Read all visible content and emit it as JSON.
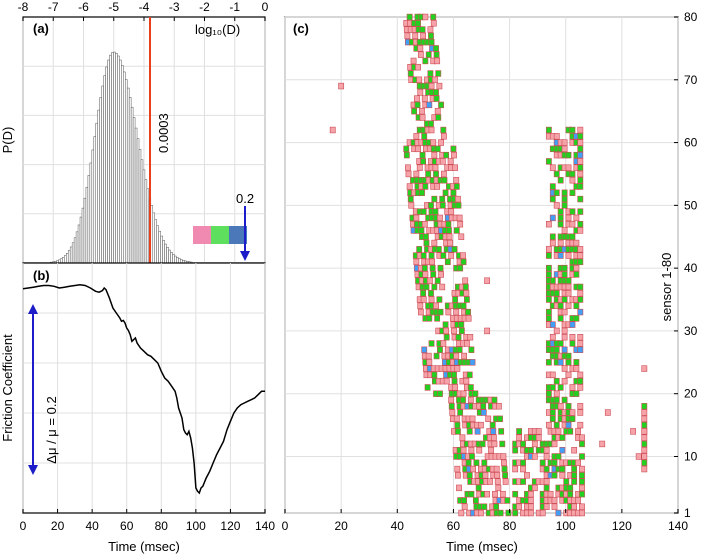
{
  "chart_data": [
    {
      "panel": "(a)",
      "type": "bar",
      "xlabel": "log₁₀(D)",
      "ylabel": "P(D)",
      "xlim": [
        -8,
        0
      ],
      "x_ticks": [
        "-8",
        "-7",
        "-6",
        "-5",
        "-4",
        "-3",
        "-2",
        "-1",
        "0"
      ],
      "grid": true,
      "histogram": {
        "x_start": -8.0,
        "bin_width": 0.065,
        "peak_x": -5.0,
        "peak_relative_height": 1.0,
        "relative_heights_description": "single peaked distribution"
      },
      "threshold_line": {
        "x": -3.52,
        "label": "0.0003",
        "color": "#e8401c"
      },
      "annotation_arrow": {
        "label": "0.2",
        "color": "#1c1cc8"
      },
      "color_legend": [
        "#f08ab0",
        "#5ee05e",
        "#4a78b8"
      ]
    },
    {
      "panel": "(b)",
      "type": "line",
      "xlabel": "Time (msec)",
      "ylabel": "Friction Coefficient",
      "xlim": [
        0,
        140
      ],
      "x_ticks": [
        "0",
        "20",
        "40",
        "60",
        "80",
        "100",
        "120",
        "140"
      ],
      "scale_annotation": "Δμ / μ = 0.2",
      "grid": true,
      "series": [
        {
          "x": [
            0,
            3,
            6,
            9,
            12,
            15,
            18,
            21,
            24,
            27,
            30,
            33,
            36,
            39,
            42,
            44,
            46,
            47,
            48,
            50,
            52,
            54,
            56,
            57,
            58,
            59,
            60,
            61,
            62,
            63,
            64,
            65,
            66,
            68,
            70,
            72,
            74,
            76,
            78,
            80,
            82,
            84,
            86,
            88,
            89,
            90,
            91,
            92,
            93,
            94,
            95,
            96,
            97,
            98,
            99,
            100,
            101,
            102,
            103,
            104,
            106,
            108,
            110,
            112,
            114,
            116,
            118,
            120,
            122,
            124,
            126,
            128,
            130,
            132,
            134,
            136,
            138,
            140
          ],
          "y": [
            0.895,
            0.9,
            0.905,
            0.91,
            0.915,
            0.915,
            0.91,
            0.9,
            0.905,
            0.91,
            0.915,
            0.92,
            0.915,
            0.9,
            0.88,
            0.875,
            0.885,
            0.9,
            0.89,
            0.84,
            0.78,
            0.75,
            0.72,
            0.7,
            0.705,
            0.69,
            0.66,
            0.645,
            0.62,
            0.58,
            0.59,
            0.6,
            0.57,
            0.54,
            0.52,
            0.5,
            0.49,
            0.47,
            0.45,
            0.4,
            0.36,
            0.34,
            0.31,
            0.28,
            0.24,
            0.18,
            0.15,
            0.12,
            0.05,
            0.03,
            0.02,
            0.04,
            0.0,
            -0.06,
            -0.15,
            -0.3,
            -0.32,
            -0.33,
            -0.3,
            -0.29,
            -0.24,
            -0.2,
            -0.15,
            -0.1,
            -0.06,
            -0.02,
            0.05,
            0.1,
            0.15,
            0.18,
            0.2,
            0.21,
            0.22,
            0.23,
            0.24,
            0.26,
            0.28,
            0.28
          ]
        }
      ]
    },
    {
      "panel": "(c)",
      "type": "heatmap",
      "xlabel": "Time (msec)",
      "ylabel": "sensor 1-80",
      "xlim": [
        0,
        140
      ],
      "ylim": [
        1,
        80
      ],
      "x_ticks": [
        "0",
        "20",
        "40",
        "60",
        "80",
        "100",
        "120",
        "140"
      ],
      "y_ticks": [
        "1",
        "10",
        "20",
        "30",
        "40",
        "50",
        "60",
        "70",
        "80"
      ],
      "grid": true,
      "colors": {
        "low": "#f5a3a8",
        "mid": "#22d11f",
        "high": "#41a0f5"
      },
      "events_description": "sensor activations spreading between approximately 45-75 msec and 85-110 msec, plus isolated events near 17 msec and 125-128 msec"
    }
  ]
}
